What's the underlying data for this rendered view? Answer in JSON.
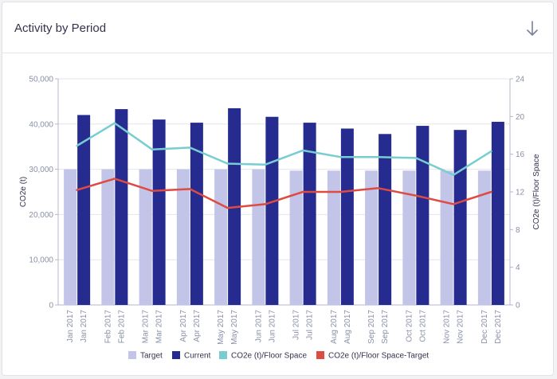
{
  "header": {
    "title": "Activity by Period",
    "download_icon": "arrow-down-icon"
  },
  "colors": {
    "target": "#c2c4e8",
    "current": "#262b8f",
    "intensity": "#78cdd1",
    "intensity_target": "#dd4b42",
    "axis_text": "#8a8fa8"
  },
  "chart_data": {
    "type": "bar",
    "categories": [
      "Jan 2017",
      "Feb 2017",
      "Mar 2017",
      "Apr 2017",
      "May 2017",
      "Jun 2017",
      "Jul 2017",
      "Aug 2017",
      "Sep 2017",
      "Oct 2017",
      "Nov 2017",
      "Dec 2017"
    ],
    "y_left": {
      "label": "CO2e (t)",
      "min": 0,
      "max": 50000,
      "ticks": [
        "0",
        "10,000",
        "20,000",
        "30,000",
        "40,000",
        "50,000"
      ]
    },
    "y_right": {
      "label": "CO2e (t)/Floor Space",
      "min": 0,
      "max": 24,
      "ticks": [
        "0",
        "4",
        "8",
        "12",
        "16",
        "20",
        "24"
      ]
    },
    "series": [
      {
        "name": "Target",
        "type": "bar",
        "axis": "left",
        "values": [
          30000,
          30000,
          30000,
          30000,
          30000,
          30000,
          29700,
          29700,
          29700,
          29700,
          29700,
          29700
        ]
      },
      {
        "name": "Current",
        "type": "bar",
        "axis": "left",
        "values": [
          42000,
          43300,
          41000,
          40300,
          43500,
          41600,
          40300,
          39000,
          37800,
          39600,
          38700,
          40500
        ]
      },
      {
        "name": "CO2e (t)/Floor Space",
        "type": "line",
        "axis": "right",
        "values": [
          16.9,
          19.3,
          16.5,
          16.7,
          15.0,
          14.9,
          16.4,
          15.7,
          15.7,
          15.6,
          13.8,
          16.3
        ]
      },
      {
        "name": "CO2e (t)/Floor Space-Target",
        "type": "line",
        "axis": "right",
        "values": [
          12.2,
          13.4,
          12.1,
          12.3,
          10.3,
          10.7,
          12.0,
          12.0,
          12.4,
          11.6,
          10.7,
          12.0
        ]
      }
    ],
    "grid": true,
    "legend": "bottom"
  }
}
